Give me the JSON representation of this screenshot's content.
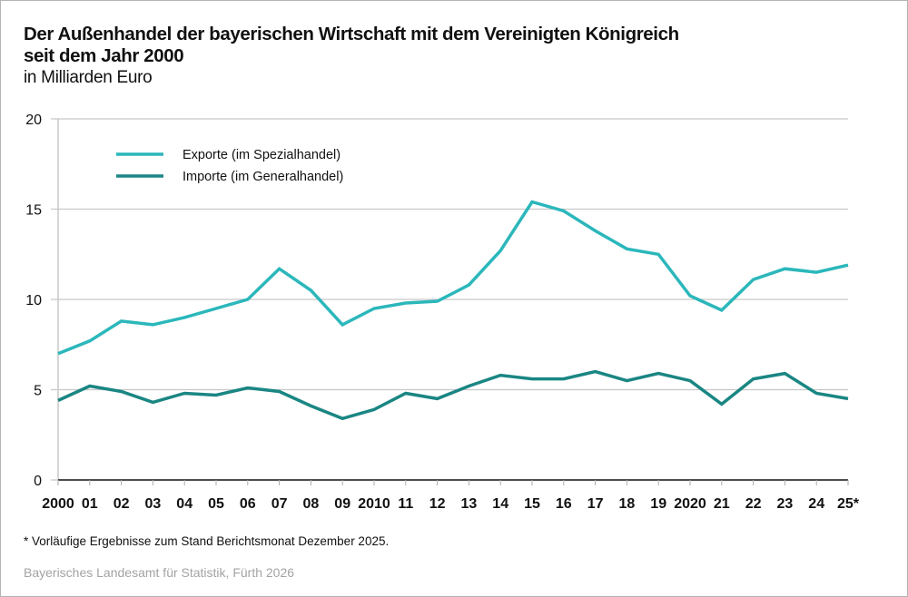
{
  "header": {
    "title_line1": "Der Außenhandel der bayerischen Wirtschaft mit dem Vereinigten Königreich",
    "title_line2": "seit dem Jahr 2000",
    "subtitle": "in Milliarden Euro"
  },
  "footer": {
    "footnote": "* Vorläufige Ergebnisse zum Stand Berichtsmonat Dezember 2025.",
    "source": "Bayerisches Landesamt für Statistik, Fürth 2026"
  },
  "chart_data": {
    "type": "line",
    "title": "Der Außenhandel der bayerischen Wirtschaft mit dem Vereinigten Königreich seit dem Jahr 2000",
    "subtitle": "in Milliarden Euro",
    "xlabel": "",
    "ylabel": "",
    "ylim": [
      0,
      20
    ],
    "yticks": [
      0,
      5,
      10,
      15,
      20
    ],
    "grid": true,
    "legend_position": "top-left",
    "categories": [
      "2000",
      "01",
      "02",
      "03",
      "04",
      "05",
      "06",
      "07",
      "08",
      "09",
      "2010",
      "11",
      "12",
      "13",
      "14",
      "15",
      "16",
      "17",
      "18",
      "19",
      "2020",
      "21",
      "22",
      "23",
      "24",
      "25*"
    ],
    "series": [
      {
        "name": "Exporte (im Spezialhandel)",
        "color": "#2bb7bb",
        "values": [
          7.0,
          7.7,
          8.8,
          8.6,
          9.0,
          9.5,
          10.0,
          11.7,
          10.5,
          8.6,
          9.5,
          9.8,
          9.9,
          10.8,
          12.7,
          15.4,
          14.9,
          13.8,
          12.8,
          12.5,
          10.2,
          9.4,
          11.1,
          11.7,
          11.5,
          11.9
        ]
      },
      {
        "name": "Importe (im Generalhandel)",
        "color": "#1a8683",
        "values": [
          4.4,
          5.2,
          4.9,
          4.3,
          4.8,
          4.7,
          5.1,
          4.9,
          4.1,
          3.4,
          3.9,
          4.8,
          4.5,
          5.2,
          5.8,
          5.6,
          5.6,
          6.0,
          5.5,
          5.9,
          5.5,
          4.2,
          5.6,
          5.9,
          4.8,
          4.5
        ]
      }
    ],
    "gridline_color": "#c8c8c8",
    "axis_color": "#111111"
  }
}
